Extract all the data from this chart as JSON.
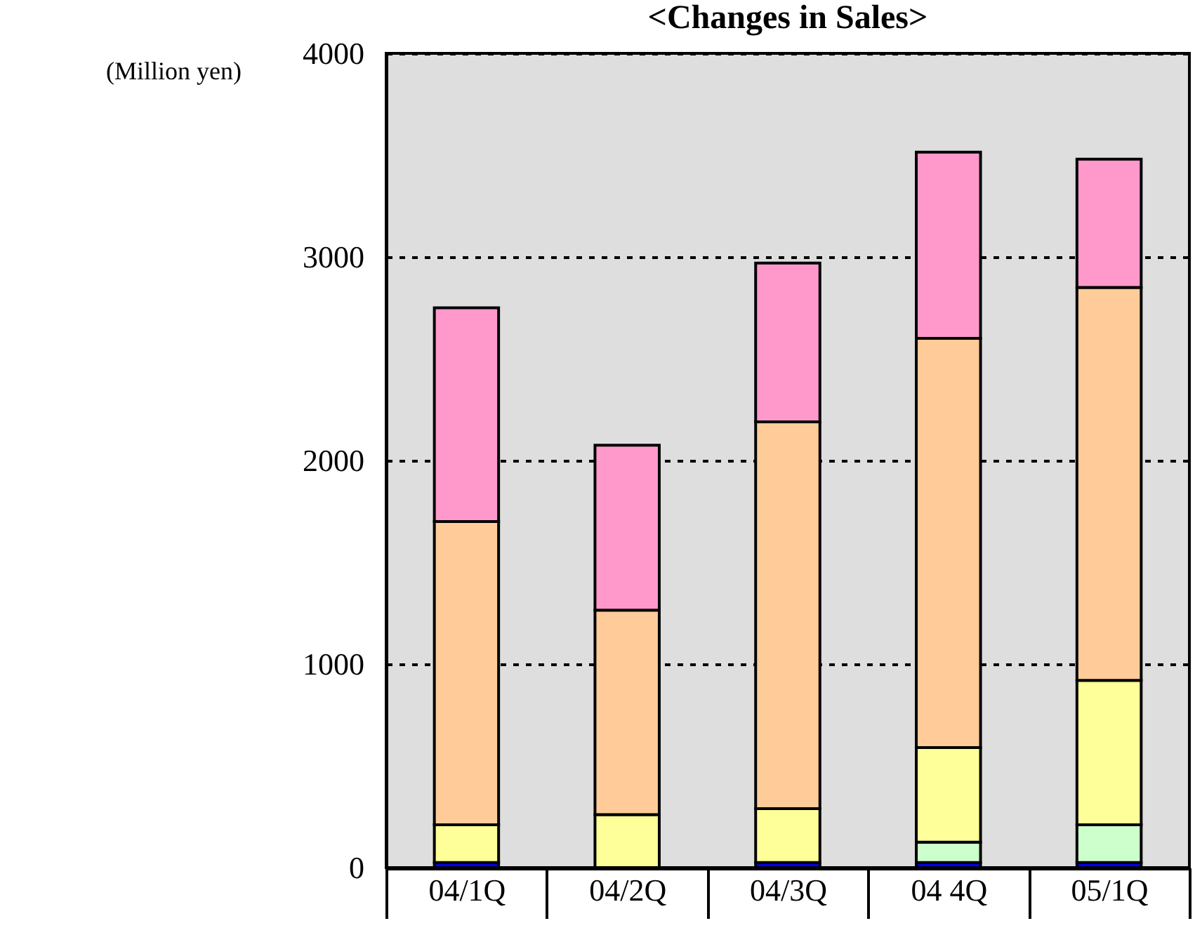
{
  "chart_data": {
    "type": "bar",
    "title": "<Changes in Sales>",
    "ylabel": "(Million yen)",
    "categories": [
      "04/1Q",
      "04/2Q",
      "04/3Q",
      "04 4Q",
      "05/1Q"
    ],
    "stacked": true,
    "series": [
      {
        "color": "#0000ff",
        "values": [
          25,
          null,
          25,
          25,
          25
        ]
      },
      {
        "color": "#ccffcc",
        "values": [
          0,
          0,
          0,
          100,
          185
        ]
      },
      {
        "color": "#ffff99",
        "values": [
          185,
          260,
          265,
          465,
          710
        ]
      },
      {
        "color": "#ffcc99",
        "values": [
          1490,
          1005,
          1900,
          2010,
          1930
        ]
      },
      {
        "color": "#ff99cc",
        "values": [
          1050,
          810,
          780,
          915,
          630
        ]
      }
    ],
    "ylim": [
      0,
      4000
    ],
    "yticks": [
      0,
      1000,
      2000,
      3000,
      4000
    ],
    "grid": "y",
    "legend": false
  }
}
